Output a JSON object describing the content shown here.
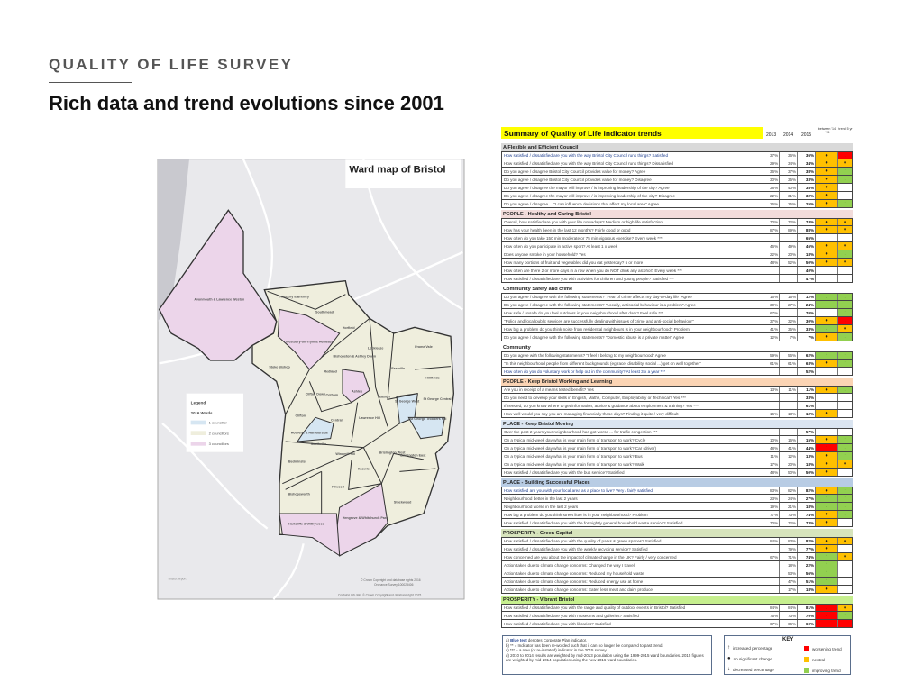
{
  "slide": {
    "kicker": "QUALITY OF LIFE SURVEY",
    "headline": "Rich data and trend evolutions since 2001"
  },
  "map": {
    "title": "Ward map of Bristol",
    "legend": {
      "title": "Legend",
      "subtitle": "2016 Wards",
      "items": [
        {
          "label": "1 councillor",
          "color": "#d6e6f2"
        },
        {
          "label": "2 councillors",
          "color": "#efeedd"
        },
        {
          "label": "3 councillors",
          "color": "#ecd5ea"
        }
      ]
    },
    "wards": [
      "Avonmouth & Lawrence Weston",
      "Henbury & Brentry",
      "Southmead",
      "Horfield",
      "Westbury-on-Trym & Henleaze",
      "Lockleaze",
      "Frome Vale",
      "Bishopston & Ashley Down",
      "Stoke Bishop",
      "Redland",
      "Eastville",
      "Hillfields",
      "Cotham",
      "Clifton Down",
      "Ashley",
      "Easton",
      "St George Central",
      "St George West",
      "Clifton",
      "Central",
      "Lawrence Hill",
      "St George Troopers Hill",
      "Hotwells & Harbourside",
      "Southville",
      "Windmill Hill",
      "Brislington West",
      "Brislington East",
      "Bedminster",
      "Knowle",
      "Filwood",
      "Bishopsworth",
      "Stockwood",
      "Hengrove & Whitchurch Park",
      "Hartcliffe & Withywood"
    ],
    "airport": "Bristol Airport",
    "copyright1": "© Crown Copyright and database rights 2016",
    "copyright2": "Ordnance Survey 100023406",
    "copyright3": "Contains OS data © Crown Copyright and database right 2015"
  },
  "table": {
    "title": "Summary of Quality of Life indicator trends",
    "years": [
      "2013",
      "2014",
      "2015"
    ],
    "col_between": "between '14-'15",
    "col_trend": "trend 5 yr",
    "colors": {
      "amber": "#ffc000",
      "green": "#92d050",
      "red": "#ff0000"
    },
    "sections": [
      {
        "title": "A Flexible and Efficient Council",
        "bg": "#d9d9d9",
        "rows": [
          {
            "q": "How satisfied / dissatisfied are you with the way Bristol City Council runs things? Satisfied",
            "blue": true,
            "v": [
              "37%",
              "36%",
              "36%"
            ],
            "t": [
              "amber-dot",
              "red-down"
            ]
          },
          {
            "q": "How satisfied / dissatisfied are you with the way Bristol City Council runs things? Dissatisfied",
            "v": [
              "29%",
              "34%",
              "34%"
            ],
            "t": [
              "amber-dot",
              "amber-dot"
            ]
          },
          {
            "q": "Do you agree / disagree Bristol City Council provides value for money? Agree",
            "v": [
              "36%",
              "37%",
              "38%"
            ],
            "t": [
              "amber-dot",
              "green-up"
            ]
          },
          {
            "q": "Do you agree / disagree Bristol City Council provides value for money? Disagree",
            "v": [
              "30%",
              "35%",
              "33%"
            ],
            "t": [
              "amber-dot",
              "green-down"
            ]
          },
          {
            "q": "Do you agree / disagree the mayor will improve / is improving leadership of the city? Agree",
            "v": [
              "38%",
              "40%",
              "38%"
            ],
            "t": [
              "amber-dot",
              ""
            ]
          },
          {
            "q": "Do you agree / disagree the mayor will improve / is improving leadership of the city? Disagree",
            "v": [
              "22%",
              "31%",
              "32%"
            ],
            "t": [
              "amber-dot",
              ""
            ]
          },
          {
            "q": "Do you agree / disagree ... \"I can influence decisions that affect my local area\" Agree",
            "v": [
              "26%",
              "25%",
              "25%"
            ],
            "t": [
              "amber-dot",
              "green-up"
            ]
          }
        ]
      },
      {
        "title": "PEOPLE - Healthy and Caring Bristol",
        "bg": "#f2dcdb",
        "rows": [
          {
            "q": "Overall, how satisfied are you with your life nowadays? Medium or high life satisfaction",
            "v": [
              "70%",
              "72%",
              "74%"
            ],
            "t": [
              "amber-dot",
              "amber-dot"
            ]
          },
          {
            "q": "How has your health been in the last 12 months? Fairly good or good",
            "v": [
              "87%",
              "89%",
              "88%"
            ],
            "t": [
              "amber-dot",
              "amber-dot"
            ]
          },
          {
            "q": "How often do you take 150 min moderate or 75 min vigorous exercise? Every week ***",
            "v": [
              "",
              "",
              "65%"
            ],
            "t": [
              "",
              ""
            ]
          },
          {
            "q": "How often do you participate in active sport? At least 1 x week",
            "v": [
              "46%",
              "49%",
              "46%"
            ],
            "t": [
              "amber-dot",
              "amber-dot"
            ]
          },
          {
            "q": "Does anyone smoke in your household? Yes",
            "v": [
              "22%",
              "20%",
              "18%"
            ],
            "t": [
              "amber-dot",
              "green-down"
            ]
          },
          {
            "q": "How many portions of fruit and vegetables did you eat yesterday? 5 or more",
            "v": [
              "48%",
              "52%",
              "50%"
            ],
            "t": [
              "amber-dot",
              "amber-dot"
            ]
          },
          {
            "q": "How often are there 2 or more days in a row when you do NOT drink any alcohol? Every week ***",
            "v": [
              "",
              "",
              "40%"
            ],
            "t": [
              "",
              ""
            ]
          },
          {
            "q": "How satisfied / dissatisfied are you with activities for children and young people? Satisfied ***",
            "v": [
              "",
              "",
              "47%"
            ],
            "t": [
              "",
              ""
            ]
          }
        ]
      },
      {
        "title": "Community Safety and crime",
        "bg": "#ffffff",
        "rows": [
          {
            "q": "Do you agree / disagree with the following statements? \"Fear of crime affects my day-to-day life\" Agree",
            "v": [
              "16%",
              "15%",
              "12%"
            ],
            "t": [
              "green-down",
              "green-down"
            ]
          },
          {
            "q": "Do you agree / disagree with the following statements? \"Locally, antisocial behaviour is a problem\" Agree",
            "v": [
              "30%",
              "27%",
              "24%"
            ],
            "t": [
              "green-down",
              "green-down"
            ]
          },
          {
            "q": "How safe / unsafe do you feel outdoors in your neighbourhood after dark? Feel safe ***",
            "v": [
              "67%",
              "",
              "70%"
            ],
            "t": [
              "",
              "green-up"
            ]
          },
          {
            "q": "\"Police and local public services are successfully dealing with issues of crime and anti-social behaviour\"",
            "v": [
              "37%",
              "32%",
              "30%"
            ],
            "t": [
              "amber-dot",
              "red-down"
            ]
          },
          {
            "q": "How big a problem do you think noise from residential neighbours is in your neighbourhood? Problem",
            "v": [
              "41%",
              "35%",
              "33%"
            ],
            "t": [
              "green-down",
              "amber-dot"
            ]
          },
          {
            "q": "Do you agree / disagree with the following statements? \"Domestic abuse is a private matter\" Agree",
            "v": [
              "12%",
              "7%",
              "7%"
            ],
            "t": [
              "amber-dot",
              "green-down"
            ]
          }
        ]
      },
      {
        "title": "Community",
        "bg": "#ffffff",
        "rows": [
          {
            "q": "Do you agree with the following statements? \"I feel I belong to my neighbourhood\" Agree",
            "v": [
              "59%",
              "56%",
              "62%"
            ],
            "t": [
              "green-up",
              "green-up"
            ]
          },
          {
            "q": "\"In this neighbourhood people from different backgrounds (eg race, disability, social ...) get on well together\"",
            "v": [
              "61%",
              "61%",
              "63%"
            ],
            "t": [
              "amber-dot",
              "green-up"
            ]
          },
          {
            "q": "How often do you do voluntary work or help out in the community? At least 3 x a year ***",
            "blue": true,
            "v": [
              "",
              "",
              "52%"
            ],
            "t": [
              "",
              ""
            ]
          }
        ]
      },
      {
        "title": "PEOPLE - Keep Bristol Working and Learning",
        "bg": "#fbd4b4",
        "rows": [
          {
            "q": "Are you in receipt of a means tested benefit? Yes",
            "v": [
              "13%",
              "11%",
              "11%"
            ],
            "t": [
              "amber-dot",
              "green-down"
            ]
          },
          {
            "q": "Do you need to develop your skills in English, Maths, Computer, Employability or Technical? Yes ***",
            "v": [
              "",
              "",
              "33%"
            ],
            "t": [
              "",
              ""
            ]
          },
          {
            "q": "If needed, do you know where to get information, advice & guidance about employment & training? Yes ***",
            "v": [
              "",
              "",
              "61%"
            ],
            "t": [
              "",
              ""
            ]
          },
          {
            "q": "How well would you say you are managing financially these days? Finding it quite / very difficult",
            "v": [
              "16%",
              "13%",
              "12%"
            ],
            "t": [
              "amber-dot",
              ""
            ]
          }
        ]
      },
      {
        "title": "PLACE - Keep Bristol Moving",
        "bg": "#dbe5f1",
        "rows": [
          {
            "q": "Over the past 2 years your neighbourhood has got worse ... for traffic congestion ***",
            "v": [
              "",
              "",
              "57%"
            ],
            "t": [
              "",
              ""
            ]
          },
          {
            "q": "On a typical mid-week day what is your main form of transport to work? Cycle",
            "v": [
              "10%",
              "16%",
              "15%"
            ],
            "t": [
              "amber-dot",
              "green-up"
            ]
          },
          {
            "q": "On a typical mid-week day what is your main form of transport to work? Car (driver)",
            "v": [
              "48%",
              "41%",
              "44%"
            ],
            "t": [
              "red-up",
              "green-down"
            ]
          },
          {
            "q": "On a typical mid-week day what is your main form of transport to work? Bus",
            "v": [
              "11%",
              "12%",
              "13%"
            ],
            "t": [
              "amber-dot",
              "green-up"
            ]
          },
          {
            "q": "On a typical mid-week day what is your main form of transport to work? Walk",
            "v": [
              "17%",
              "20%",
              "18%"
            ],
            "t": [
              "amber-dot",
              "amber-dot"
            ]
          },
          {
            "q": "How satisfied / dissatisfied are you with the bus service? Satisfied",
            "v": [
              "48%",
              "50%",
              "50%"
            ],
            "t": [
              "amber-dot",
              ""
            ]
          }
        ]
      },
      {
        "title": "PLACE - Building Successful Places",
        "bg": "#b8cce4",
        "rows": [
          {
            "q": "How satisfied are you with your local area as a place to live? Very / fairly satisfied",
            "blue": true,
            "v": [
              "83%",
              "82%",
              "82%"
            ],
            "t": [
              "amber-dot",
              "green-up"
            ]
          },
          {
            "q": "Neighbourhood better in the last 2 years",
            "v": [
              "23%",
              "24%",
              "27%"
            ],
            "t": [
              "green-up",
              "green-up"
            ]
          },
          {
            "q": "Neighbourhood worse in the last 2 years",
            "v": [
              "19%",
              "21%",
              "18%"
            ],
            "t": [
              "green-down",
              "green-down"
            ]
          },
          {
            "q": "How big a problem do you think street litter is in your neighbourhood? Problem",
            "v": [
              "77%",
              "73%",
              "74%"
            ],
            "t": [
              "amber-dot",
              "green-down"
            ]
          },
          {
            "q": "How satisfied / dissatisfied are you with the fortnightly general household waste service? Satisfied",
            "v": [
              "70%",
              "72%",
              "73%"
            ],
            "t": [
              "amber-dot",
              ""
            ]
          }
        ]
      },
      {
        "title": "PROSPERITY - Green Capital",
        "bg": "#d7e4bc",
        "rows": [
          {
            "q": "How satisfied / dissatisfied are you with the quality of parks & green spaces? Satisfied",
            "v": [
              "84%",
              "83%",
              "82%"
            ],
            "t": [
              "amber-dot",
              "amber-dot"
            ]
          },
          {
            "q": "How satisfied / dissatisfied are you with the weekly recycling service? Satisfied",
            "v": [
              "",
              "79%",
              "77%"
            ],
            "t": [
              "amber-dot",
              ""
            ]
          },
          {
            "q": "How concerned are you about the impact of climate change in the UK? Fairly / very concerned",
            "v": [
              "67%",
              "71%",
              "74%"
            ],
            "t": [
              "green-up",
              "amber-dot"
            ]
          },
          {
            "q": "Action taken due to climate change concerns: Changed the way I travel",
            "v": [
              "",
              "18%",
              "22%"
            ],
            "t": [
              "green-up",
              ""
            ]
          },
          {
            "q": "Action taken due to climate change concerns: Reduced my household waste",
            "v": [
              "",
              "53%",
              "56%"
            ],
            "t": [
              "green-up",
              ""
            ]
          },
          {
            "q": "Action taken due to climate change concerns: Reduced energy use at home",
            "v": [
              "",
              "47%",
              "51%"
            ],
            "t": [
              "green-up",
              ""
            ]
          },
          {
            "q": "Action taken due to climate change concerns: Eaten less meat and dairy produce",
            "v": [
              "",
              "17%",
              "18%"
            ],
            "t": [
              "amber-dot",
              ""
            ]
          }
        ]
      },
      {
        "title": "PROSPERITY - Vibrant Bristol",
        "bg": "#c6ef8e",
        "rows": [
          {
            "q": "How satisfied / dissatisfied are you with the range and quality of outdoor events in Bristol? Satisfied",
            "v": [
              "84%",
              "84%",
              "81%"
            ],
            "t": [
              "red-down",
              "amber-dot"
            ]
          },
          {
            "q": "How satisfied / dissatisfied are you with museums and galleries? Satisfied",
            "v": [
              "75%",
              "73%",
              "70%"
            ],
            "t": [
              "red-down",
              "green-up"
            ]
          },
          {
            "q": "How satisfied / dissatisfied are you with libraries? Satisfied",
            "v": [
              "67%",
              "66%",
              "60%"
            ],
            "t": [
              "red-down",
              "red-down"
            ]
          }
        ]
      }
    ],
    "notes": {
      "a_prefix": "a)",
      "a_blue": "Blue text",
      "a_rest": "denotes Corporate Plan indicator.",
      "b": "b) ** = Indicator has been re-worded such that it can no longer be compared to past trend.",
      "c": "c) *** = a new (or re-instated) indicator in the 2015 survey.",
      "d": "d) 2010 to 2014 results are weighted by mid-2013 population using the 1999-2015 ward boundaries. 2015 figures are weighted by mid-2014 population using the new 2016 ward boundaries."
    },
    "key": {
      "title": "KEY",
      "increased": "increased percentage",
      "no_change": "no significant change",
      "decreased": "decreased percentage",
      "worsening": "worsening trend",
      "neutral": "neutral",
      "improving": "improving trend"
    }
  }
}
